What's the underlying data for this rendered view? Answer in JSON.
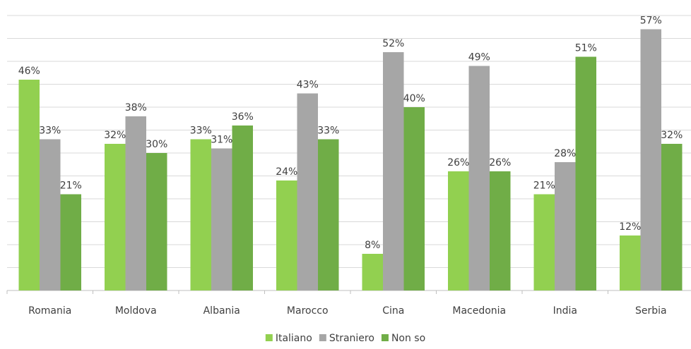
{
  "chart_data": {
    "type": "bar",
    "categories": [
      "Romania",
      "Moldova",
      "Albania",
      "Marocco",
      "Cina",
      "Macedonia",
      "India",
      "Serbia"
    ],
    "series": [
      {
        "name": "Italiano",
        "color": "#92d050",
        "values": [
          46,
          32,
          33,
          24,
          8,
          26,
          21,
          12
        ]
      },
      {
        "name": "Straniero",
        "color": "#a6a6a6",
        "values": [
          33,
          38,
          31,
          43,
          52,
          49,
          28,
          57
        ]
      },
      {
        "name": "Non so",
        "color": "#70ad47",
        "values": [
          21,
          30,
          36,
          33,
          40,
          26,
          51,
          32
        ]
      }
    ],
    "value_suffix": "%",
    "ylim": [
      0,
      60
    ],
    "grid": true,
    "legend": "bottom-center",
    "data_labels": true,
    "gridline_color": "#d9d9d9",
    "axis_color": "#bfbfbf"
  }
}
